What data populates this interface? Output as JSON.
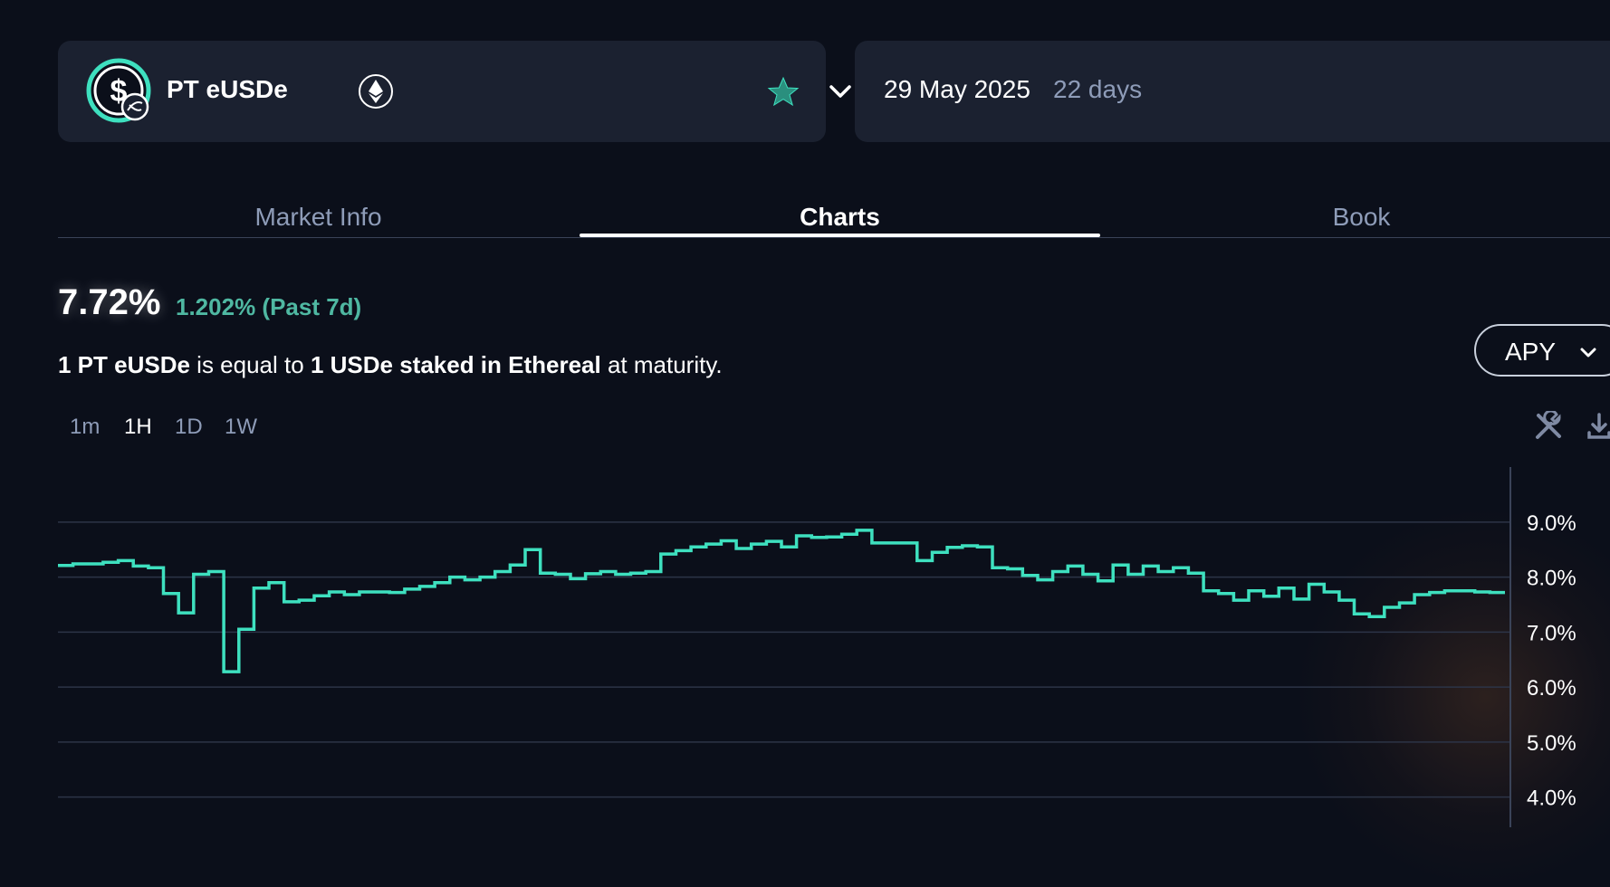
{
  "market": {
    "name": "PT eUSDe",
    "logo_icon": "usde-coin-icon",
    "chain_icon": "ethereum-icon",
    "favorite_icon": "star-icon",
    "dropdown_icon": "chevron-down-icon"
  },
  "expiry": {
    "date": "29 May 2025",
    "days_left": "22 days"
  },
  "tabs": [
    {
      "label": "Market Info",
      "active": false
    },
    {
      "label": "Charts",
      "active": true
    },
    {
      "label": "Book",
      "active": false
    }
  ],
  "summary": {
    "rate": "7.72%",
    "change": "1.202% (Past 7d)",
    "desc_amount": "1 PT eUSDe",
    "desc_mid": " is equal to ",
    "desc_underlying": "1 USDe staked in Ethereal",
    "desc_end": " at maturity."
  },
  "chart_type_selector": {
    "label": "APY"
  },
  "timeframes": [
    {
      "label": "1m",
      "active": false
    },
    {
      "label": "1H",
      "active": true
    },
    {
      "label": "1D",
      "active": false
    },
    {
      "label": "1W",
      "active": false
    }
  ],
  "toolbar": {
    "tools_icon": "tools-icon",
    "download_icon": "download-icon"
  },
  "colors": {
    "accent": "#3ee0bf",
    "background": "#0b0f1a",
    "card": "#1b2130",
    "muted_text": "#8e9cb8",
    "positive": "#4fb8a2"
  },
  "chart_data": {
    "type": "line",
    "step": true,
    "series": [
      {
        "values": [
          8.21,
          8.24,
          8.24,
          8.27,
          8.3,
          8.2,
          8.17,
          7.7,
          7.35,
          8.05,
          8.1,
          6.28,
          7.05,
          7.8,
          7.9,
          7.55,
          7.58,
          7.66,
          7.73,
          7.68,
          7.73,
          7.73,
          7.72,
          7.78,
          7.83,
          7.9,
          8.0,
          7.95,
          8.0,
          8.1,
          8.22,
          8.5,
          8.07,
          8.05,
          7.97,
          8.06,
          8.1,
          8.05,
          8.07,
          8.1,
          8.42,
          8.48,
          8.55,
          8.6,
          8.66,
          8.52,
          8.6,
          8.65,
          8.55,
          8.75,
          8.72,
          8.73,
          8.78,
          8.85,
          8.62,
          8.62,
          8.62,
          8.3,
          8.45,
          8.54,
          8.57,
          8.55,
          8.17,
          8.15,
          8.03,
          7.95,
          8.1,
          8.2,
          8.05,
          7.93,
          8.22,
          8.05,
          8.2,
          8.1,
          8.17,
          8.07,
          7.75,
          7.7,
          7.58,
          7.75,
          7.65,
          7.8,
          7.6,
          7.87,
          7.73,
          7.58,
          7.33,
          7.28,
          7.45,
          7.53,
          7.68,
          7.72,
          7.75,
          7.75,
          7.73,
          7.72
        ]
      }
    ],
    "y_ticks": [
      "9.0%",
      "8.0%",
      "7.0%",
      "6.0%",
      "5.0%",
      "4.0%"
    ],
    "y_tick_values": [
      9,
      8,
      7,
      6,
      5,
      4
    ],
    "ylim": [
      3.45,
      10.1
    ],
    "y_axis_position": "right",
    "grid": true,
    "legend": "none"
  }
}
